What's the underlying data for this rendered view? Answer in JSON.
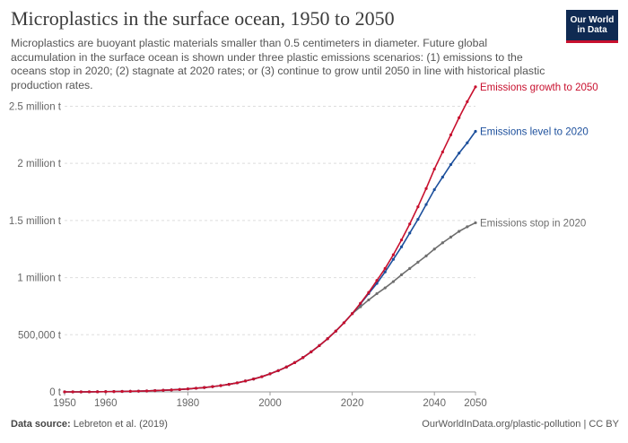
{
  "header": {
    "title": "Microplastics in the surface ocean, 1950 to 2050",
    "subtitle": "Microplastics are buoyant plastic materials smaller than 0.5 centimeters in diameter. Future global accumulation in the surface ocean is shown under three plastic emissions scenarios: (1) emissions to the oceans stop in 2020; (2) stagnate at 2020 rates; or (3) continue to grow until 2050 in line with historical plastic production rates.",
    "logo_line1": "Our World",
    "logo_line2": "in Data"
  },
  "footer": {
    "source_label": "Data source:",
    "source_text": "Lebreton et al. (2019)",
    "credit": "OurWorldInData.org/plastic-pollution | CC BY"
  },
  "colors": {
    "growth": "#c8102e",
    "level": "#1c4f9c",
    "stop": "#6e6e6e",
    "grid": "#dddddd",
    "text": "#666666"
  },
  "chart_data": {
    "type": "line",
    "x_min": 1950,
    "x_max": 2050,
    "ylim": [
      0,
      2700000
    ],
    "grid": "horizontal dashed",
    "x_ticks": [
      "1950",
      "1960",
      "1980",
      "2000",
      "2020",
      "2040",
      "2050"
    ],
    "y_ticks": [
      {
        "value": 0,
        "label": "0 t"
      },
      {
        "value": 500000,
        "label": "500,000 t"
      },
      {
        "value": 1000000,
        "label": "1 million t"
      },
      {
        "value": 1500000,
        "label": "1.5 million t"
      },
      {
        "value": 2000000,
        "label": "2 million t"
      },
      {
        "value": 2500000,
        "label": "2.5 million t"
      }
    ],
    "x": [
      1950,
      1952,
      1954,
      1956,
      1958,
      1960,
      1962,
      1964,
      1966,
      1968,
      1970,
      1972,
      1974,
      1976,
      1978,
      1980,
      1982,
      1984,
      1986,
      1988,
      1990,
      1992,
      1994,
      1996,
      1998,
      2000,
      2002,
      2004,
      2006,
      2008,
      2010,
      2012,
      2014,
      2016,
      2018,
      2020,
      2022,
      2024,
      2026,
      2028,
      2030,
      2032,
      2034,
      2036,
      2038,
      2040,
      2042,
      2044,
      2046,
      2048,
      2050
    ],
    "series": [
      {
        "name": "Emissions growth to 2050",
        "color_key": "growth",
        "values": [
          0,
          0,
          0,
          500,
          1000,
          2000,
          3000,
          4000,
          5000,
          6500,
          8000,
          11000,
          14000,
          17000,
          21000,
          26000,
          32000,
          38000,
          46000,
          55000,
          66000,
          79000,
          95000,
          113000,
          133000,
          158000,
          186000,
          218000,
          256000,
          300000,
          350000,
          405000,
          465000,
          532000,
          605000,
          685000,
          775000,
          870000,
          975000,
          1080000,
          1200000,
          1330000,
          1470000,
          1620000,
          1780000,
          1950000,
          2100000,
          2250000,
          2400000,
          2540000,
          2670000
        ]
      },
      {
        "name": "Emissions level to 2020",
        "color_key": "level",
        "values": [
          0,
          0,
          0,
          500,
          1000,
          2000,
          3000,
          4000,
          5000,
          6500,
          8000,
          11000,
          14000,
          17000,
          21000,
          26000,
          32000,
          38000,
          46000,
          55000,
          66000,
          79000,
          95000,
          113000,
          133000,
          158000,
          186000,
          218000,
          256000,
          300000,
          350000,
          405000,
          465000,
          532000,
          605000,
          685000,
          770000,
          860000,
          950000,
          1050000,
          1160000,
          1270000,
          1390000,
          1510000,
          1640000,
          1770000,
          1880000,
          1990000,
          2090000,
          2180000,
          2280000
        ]
      },
      {
        "name": "Emissions stop in 2020",
        "color_key": "stop",
        "values": [
          0,
          0,
          0,
          500,
          1000,
          2000,
          3000,
          4000,
          5000,
          6500,
          8000,
          11000,
          14000,
          17000,
          21000,
          26000,
          32000,
          38000,
          46000,
          55000,
          66000,
          79000,
          95000,
          113000,
          133000,
          158000,
          186000,
          218000,
          256000,
          300000,
          350000,
          405000,
          465000,
          532000,
          605000,
          685000,
          745000,
          805000,
          860000,
          910000,
          965000,
          1025000,
          1080000,
          1135000,
          1190000,
          1250000,
          1305000,
          1355000,
          1405000,
          1445000,
          1480000
        ]
      }
    ]
  }
}
